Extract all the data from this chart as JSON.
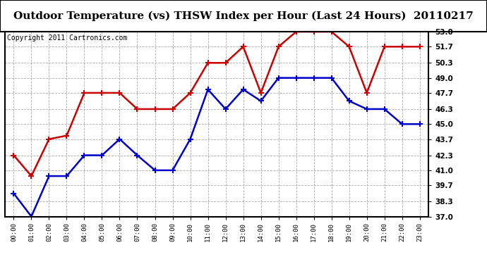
{
  "title": "Outdoor Temperature (vs) THSW Index per Hour (Last 24 Hours)  20110217",
  "copyright": "Copyright 2011 Cartronics.com",
  "x_labels": [
    "00:00",
    "01:00",
    "02:00",
    "03:00",
    "04:00",
    "05:00",
    "06:00",
    "07:00",
    "08:00",
    "09:00",
    "10:00",
    "11:00",
    "12:00",
    "13:00",
    "14:00",
    "15:00",
    "16:00",
    "17:00",
    "18:00",
    "19:00",
    "20:00",
    "21:00",
    "22:00",
    "23:00"
  ],
  "blue_data": [
    39.0,
    37.0,
    40.5,
    40.5,
    42.3,
    42.3,
    43.7,
    42.3,
    41.0,
    41.0,
    43.7,
    48.0,
    46.3,
    48.0,
    47.0,
    49.0,
    49.0,
    49.0,
    49.0,
    47.0,
    46.3,
    46.3,
    45.0,
    45.0
  ],
  "red_data": [
    42.3,
    40.5,
    43.7,
    44.0,
    47.7,
    47.7,
    47.7,
    46.3,
    46.3,
    46.3,
    47.7,
    50.3,
    50.3,
    51.7,
    47.7,
    51.7,
    53.0,
    53.0,
    53.0,
    51.7,
    47.7,
    51.7,
    51.7,
    51.7
  ],
  "blue_color": "#0000cc",
  "red_color": "#cc0000",
  "bg_color": "#ffffff",
  "plot_bg": "#ffffff",
  "grid_color": "#aaaaaa",
  "ylim": [
    37.0,
    53.0
  ],
  "yticks": [
    37.0,
    38.3,
    39.7,
    41.0,
    42.3,
    43.7,
    45.0,
    46.3,
    47.7,
    49.0,
    50.3,
    51.7,
    53.0
  ],
  "title_fontsize": 11,
  "copyright_fontsize": 7,
  "marker": "+",
  "marker_size": 6,
  "line_width": 1.8,
  "title_bg": "#dddddd"
}
